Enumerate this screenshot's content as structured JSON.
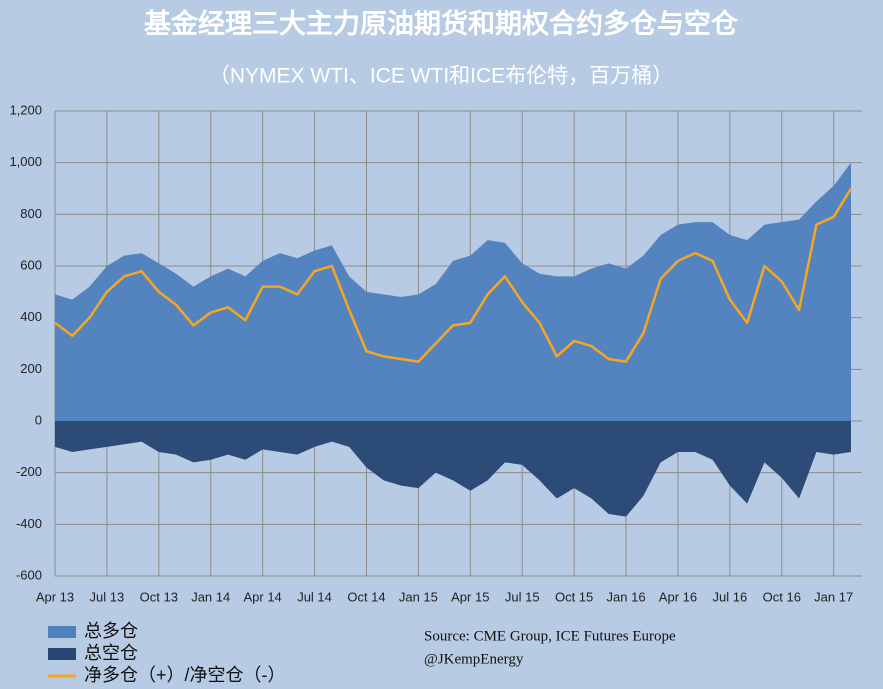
{
  "chart_data": {
    "type": "area",
    "title": "基金经理三大主力原油期货和期权合约多仓与空仓",
    "subtitle": "（NYMEX WTI、ICE WTI和ICE布伦特，百万桶）",
    "source": "Source:  CME Group, ICE Futures Europe",
    "credit": "@JKempEnergy",
    "categories": [
      "Apr 13",
      null,
      null,
      "Jul 13",
      null,
      null,
      "Oct 13",
      null,
      null,
      "Jan 14",
      null,
      null,
      "Apr 14",
      null,
      null,
      "Jul 14",
      null,
      null,
      "Oct 14",
      null,
      null,
      "Jan 15",
      null,
      null,
      "Apr 15",
      null,
      null,
      "Jul 15",
      null,
      null,
      "Oct 15",
      null,
      null,
      "Jan 16",
      null,
      null,
      "Apr 16",
      null,
      null,
      "Jul 16",
      null,
      null,
      "Oct 16",
      null,
      null,
      "Jan 17",
      null
    ],
    "series": [
      {
        "name": "总多仓",
        "color": "#4f81bd",
        "kind": "area",
        "values": [
          490,
          470,
          520,
          600,
          640,
          650,
          610,
          570,
          520,
          560,
          590,
          560,
          620,
          650,
          630,
          660,
          680,
          560,
          500,
          490,
          480,
          490,
          530,
          620,
          640,
          700,
          690,
          610,
          570,
          560,
          560,
          590,
          610,
          590,
          640,
          720,
          760,
          770,
          770,
          720,
          700,
          760,
          770,
          780,
          850,
          910,
          1000
        ]
      },
      {
        "name": "总空仓",
        "color": "#284673",
        "kind": "area",
        "values": [
          -100,
          -120,
          -110,
          -100,
          -90,
          -80,
          -120,
          -130,
          -160,
          -150,
          -130,
          -150,
          -110,
          -120,
          -130,
          -100,
          -80,
          -100,
          -180,
          -230,
          -250,
          -260,
          -200,
          -230,
          -270,
          -230,
          -160,
          -170,
          -230,
          -300,
          -260,
          -300,
          -360,
          -370,
          -290,
          -160,
          -120,
          -120,
          -150,
          -250,
          -320,
          -160,
          -220,
          -300,
          -120,
          -130,
          -120
        ]
      },
      {
        "name": "净多仓（+）/净空仓（-）",
        "color": "#f5a623",
        "kind": "line",
        "values": [
          380,
          330,
          400,
          500,
          560,
          580,
          500,
          450,
          370,
          420,
          440,
          390,
          520,
          520,
          490,
          580,
          600,
          430,
          270,
          250,
          240,
          230,
          300,
          370,
          380,
          490,
          560,
          460,
          380,
          250,
          310,
          290,
          240,
          230,
          340,
          550,
          620,
          650,
          620,
          470,
          380,
          600,
          540,
          430,
          760,
          790,
          900
        ]
      }
    ],
    "ylim": [
      -600,
      1200
    ],
    "yticks": [
      {
        "value": 1200,
        "label": "1,200"
      },
      {
        "value": 1000,
        "label": "1,000"
      },
      800,
      600,
      400,
      200,
      0,
      -200,
      -400,
      -600
    ],
    "grid": true
  }
}
